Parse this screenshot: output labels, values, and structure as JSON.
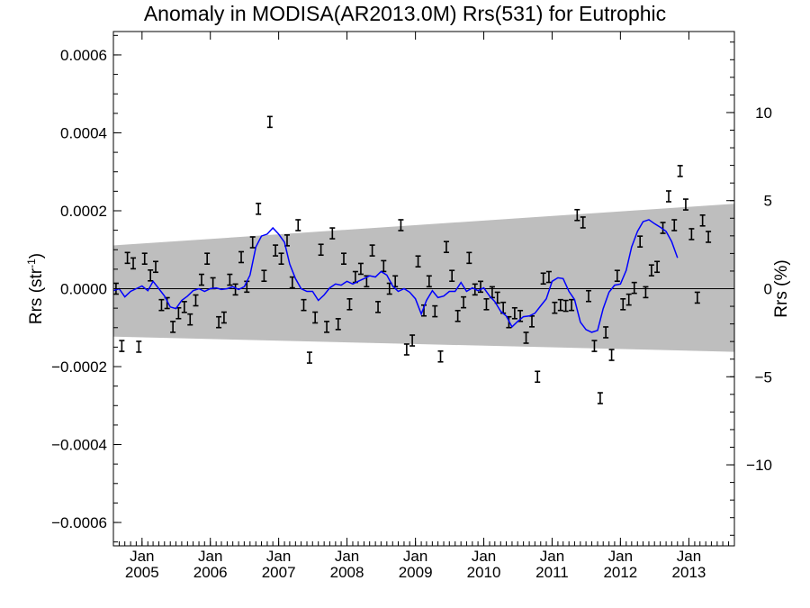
{
  "chart_data": {
    "type": "line",
    "title": "Anomaly in MODISA(AR2013.0M) Rrs(531) for Eutrophic",
    "ylabel": "Rrs (str",
    "ylabel_sup": "-1",
    "ylabel_close": ")",
    "y2label": "Rrs (%)",
    "ylim": [
      -0.00066,
      0.00066
    ],
    "y2lim": [
      -14.6,
      14.6
    ],
    "xlim": [
      "2004-08-01",
      "2013-09-01"
    ],
    "yticks": [
      {
        "value": -0.0006,
        "label": "−0.0006"
      },
      {
        "value": -0.0004,
        "label": "−0.0004"
      },
      {
        "value": -0.0002,
        "label": "−0.0002"
      },
      {
        "value": 0.0,
        "label": "0.0000"
      },
      {
        "value": 0.0002,
        "label": "0.0002"
      },
      {
        "value": 0.0004,
        "label": "0.0004"
      },
      {
        "value": 0.0006,
        "label": "0.0006"
      }
    ],
    "y2ticks": [
      {
        "value": -10,
        "label": "−10"
      },
      {
        "value": -5,
        "label": "−5"
      },
      {
        "value": 0,
        "label": "0"
      },
      {
        "value": 5,
        "label": "5"
      },
      {
        "value": 10,
        "label": "10"
      }
    ],
    "xticks": [
      {
        "date": "2005-01-01",
        "month": "Jan",
        "year": "2005"
      },
      {
        "date": "2006-01-01",
        "month": "Jan",
        "year": "2006"
      },
      {
        "date": "2007-01-01",
        "month": "Jan",
        "year": "2007"
      },
      {
        "date": "2008-01-01",
        "month": "Jan",
        "year": "2008"
      },
      {
        "date": "2009-01-01",
        "month": "Jan",
        "year": "2009"
      },
      {
        "date": "2010-01-01",
        "month": "Jan",
        "year": "2010"
      },
      {
        "date": "2011-01-01",
        "month": "Jan",
        "year": "2011"
      },
      {
        "date": "2012-01-01",
        "month": "Jan",
        "year": "2012"
      },
      {
        "date": "2013-01-01",
        "month": "Jan",
        "year": "2013"
      }
    ],
    "band": {
      "start": {
        "date": "2004-08-01",
        "upper": 0.000111,
        "lower": -0.000123
      },
      "end": {
        "date": "2013-09-01",
        "upper": 0.000218,
        "lower": -0.000162
      }
    },
    "zero_line": 0,
    "colors": {
      "band": "#bebebe",
      "smooth": "#0000ff",
      "points": "#000000",
      "zero": "#000000"
    },
    "series": [
      {
        "kind": "monthly_anomaly_errorbars",
        "points": [
          {
            "date": "2004-08-15",
            "y": 0.0
          },
          {
            "date": "2004-09-15",
            "y": -0.000147
          },
          {
            "date": "2004-10-15",
            "y": 7.9e-05
          },
          {
            "date": "2004-11-15",
            "y": 6.5e-05
          },
          {
            "date": "2004-12-15",
            "y": -0.000149
          },
          {
            "date": "2005-01-15",
            "y": 7.7e-05
          },
          {
            "date": "2005-02-15",
            "y": 3.4e-05
          },
          {
            "date": "2005-03-15",
            "y": 5.6e-05
          },
          {
            "date": "2005-04-15",
            "y": -4.2e-05
          },
          {
            "date": "2005-05-15",
            "y": -3.7e-05
          },
          {
            "date": "2005-06-15",
            "y": -9.8e-05
          },
          {
            "date": "2005-07-15",
            "y": -6.3e-05
          },
          {
            "date": "2005-08-15",
            "y": -4.7e-05
          },
          {
            "date": "2005-09-15",
            "y": -7.9e-05
          },
          {
            "date": "2005-10-15",
            "y": -3e-05
          },
          {
            "date": "2005-11-15",
            "y": 2.3e-05
          },
          {
            "date": "2005-12-15",
            "y": 7.7e-05
          },
          {
            "date": "2006-01-15",
            "y": 1.4e-05
          },
          {
            "date": "2006-02-15",
            "y": -8.6e-05
          },
          {
            "date": "2006-03-15",
            "y": -7.4e-05
          },
          {
            "date": "2006-04-15",
            "y": 2.3e-05
          },
          {
            "date": "2006-05-15",
            "y": -2e-06
          },
          {
            "date": "2006-06-15",
            "y": 8.1e-05
          },
          {
            "date": "2006-07-15",
            "y": 5e-06
          },
          {
            "date": "2006-08-15",
            "y": 0.000119
          },
          {
            "date": "2006-09-15",
            "y": 0.000205
          },
          {
            "date": "2006-10-15",
            "y": 3.3e-05
          },
          {
            "date": "2006-11-15",
            "y": 0.000428
          },
          {
            "date": "2006-12-15",
            "y": 9.8e-05
          },
          {
            "date": "2007-01-15",
            "y": 7.7e-05
          },
          {
            "date": "2007-02-15",
            "y": 0.000124
          },
          {
            "date": "2007-03-15",
            "y": 1.6e-05
          },
          {
            "date": "2007-04-15",
            "y": 0.000163
          },
          {
            "date": "2007-05-15",
            "y": -4.2e-05
          },
          {
            "date": "2007-06-15",
            "y": -0.000177
          },
          {
            "date": "2007-07-15",
            "y": -7.4e-05
          },
          {
            "date": "2007-08-15",
            "y": 0.0001
          },
          {
            "date": "2007-09-15",
            "y": -9.8e-05
          },
          {
            "date": "2007-10-15",
            "y": 0.000142
          },
          {
            "date": "2007-11-15",
            "y": -9.1e-05
          },
          {
            "date": "2007-12-15",
            "y": 7.7e-05
          },
          {
            "date": "2008-01-15",
            "y": -4e-05
          },
          {
            "date": "2008-02-15",
            "y": 3e-05
          },
          {
            "date": "2008-03-15",
            "y": 5.1e-05
          },
          {
            "date": "2008-04-15",
            "y": 1.9e-05
          },
          {
            "date": "2008-05-15",
            "y": 9.8e-05
          },
          {
            "date": "2008-06-15",
            "y": -4.7e-05
          },
          {
            "date": "2008-07-15",
            "y": 5.8e-05
          },
          {
            "date": "2008-08-15",
            "y": 0.0
          },
          {
            "date": "2008-09-15",
            "y": 1.9e-05
          },
          {
            "date": "2008-10-15",
            "y": 0.000163
          },
          {
            "date": "2008-11-15",
            "y": -0.000156
          },
          {
            "date": "2008-12-15",
            "y": -0.000133
          },
          {
            "date": "2009-01-15",
            "y": 7e-05
          },
          {
            "date": "2009-02-15",
            "y": -5.6e-05
          },
          {
            "date": "2009-03-15",
            "y": 1.9e-05
          },
          {
            "date": "2009-04-15",
            "y": -5.8e-05
          },
          {
            "date": "2009-05-15",
            "y": -0.000174
          },
          {
            "date": "2009-06-15",
            "y": 0.000107
          },
          {
            "date": "2009-07-15",
            "y": 3.3e-05
          },
          {
            "date": "2009-08-15",
            "y": -7e-05
          },
          {
            "date": "2009-09-15",
            "y": -3.5e-05
          },
          {
            "date": "2009-10-15",
            "y": 7.9e-05
          },
          {
            "date": "2009-11-15",
            "y": -2e-06
          },
          {
            "date": "2009-12-15",
            "y": 5e-06
          },
          {
            "date": "2010-01-15",
            "y": -4e-05
          },
          {
            "date": "2010-02-15",
            "y": -9e-06
          },
          {
            "date": "2010-03-15",
            "y": -2.3e-05
          },
          {
            "date": "2010-04-15",
            "y": -4.9e-05
          },
          {
            "date": "2010-05-15",
            "y": -8.6e-05
          },
          {
            "date": "2010-06-15",
            "y": -6.3e-05
          },
          {
            "date": "2010-07-15",
            "y": -7e-05
          },
          {
            "date": "2010-08-15",
            "y": -0.000126
          },
          {
            "date": "2010-09-15",
            "y": -8.4e-05
          },
          {
            "date": "2010-10-15",
            "y": -0.000226
          },
          {
            "date": "2010-11-15",
            "y": 2.6e-05
          },
          {
            "date": "2010-12-15",
            "y": 3e-05
          },
          {
            "date": "2011-01-15",
            "y": -4.9e-05
          },
          {
            "date": "2011-02-15",
            "y": -4.2e-05
          },
          {
            "date": "2011-03-15",
            "y": -4.4e-05
          },
          {
            "date": "2011-04-15",
            "y": -4.2e-05
          },
          {
            "date": "2011-05-15",
            "y": 0.000189
          },
          {
            "date": "2011-06-15",
            "y": 0.00017
          },
          {
            "date": "2011-07-15",
            "y": -1.9e-05
          },
          {
            "date": "2011-08-15",
            "y": -0.000147
          },
          {
            "date": "2011-09-15",
            "y": -0.000281
          },
          {
            "date": "2011-10-15",
            "y": -0.000112
          },
          {
            "date": "2011-11-15",
            "y": -0.00017
          },
          {
            "date": "2011-12-15",
            "y": 3.3e-05
          },
          {
            "date": "2012-01-15",
            "y": -4e-05
          },
          {
            "date": "2012-02-15",
            "y": -2.8e-05
          },
          {
            "date": "2012-03-15",
            "y": 2e-06
          },
          {
            "date": "2012-04-15",
            "y": 0.000121
          },
          {
            "date": "2012-05-15",
            "y": -9e-06
          },
          {
            "date": "2012-06-15",
            "y": 4.7e-05
          },
          {
            "date": "2012-07-15",
            "y": 5.6e-05
          },
          {
            "date": "2012-08-15",
            "y": 0.000156
          },
          {
            "date": "2012-09-15",
            "y": 0.000237
          },
          {
            "date": "2012-10-15",
            "y": 0.000163
          },
          {
            "date": "2012-11-15",
            "y": 0.000302
          },
          {
            "date": "2012-12-15",
            "y": 0.000216
          },
          {
            "date": "2013-01-15",
            "y": 0.00014
          },
          {
            "date": "2013-02-15",
            "y": -2.3e-05
          },
          {
            "date": "2013-03-15",
            "y": 0.000175
          },
          {
            "date": "2013-04-15",
            "y": 0.000133
          }
        ]
      },
      {
        "kind": "smoothed_anomaly",
        "points": [
          {
            "date": "2004-08-01",
            "y": -5e-06
          },
          {
            "date": "2004-09-01",
            "y": 0.0
          },
          {
            "date": "2004-10-01",
            "y": -2.1e-05
          },
          {
            "date": "2004-11-01",
            "y": -7e-06
          },
          {
            "date": "2004-12-01",
            "y": 0.0
          },
          {
            "date": "2005-01-01",
            "y": 7e-06
          },
          {
            "date": "2005-02-01",
            "y": -5e-06
          },
          {
            "date": "2005-03-01",
            "y": 1.9e-05
          },
          {
            "date": "2005-04-01",
            "y": 0.0
          },
          {
            "date": "2005-05-01",
            "y": -1.9e-05
          },
          {
            "date": "2005-06-01",
            "y": -4.7e-05
          },
          {
            "date": "2005-07-01",
            "y": -5.1e-05
          },
          {
            "date": "2005-08-01",
            "y": -3e-05
          },
          {
            "date": "2005-09-01",
            "y": -1.9e-05
          },
          {
            "date": "2005-10-01",
            "y": -5e-06
          },
          {
            "date": "2005-11-01",
            "y": 0.0
          },
          {
            "date": "2005-12-01",
            "y": -7e-06
          },
          {
            "date": "2006-01-01",
            "y": 0.0
          },
          {
            "date": "2006-02-01",
            "y": 2e-06
          },
          {
            "date": "2006-03-01",
            "y": -2e-06
          },
          {
            "date": "2006-04-01",
            "y": 0.0
          },
          {
            "date": "2006-05-01",
            "y": 5e-06
          },
          {
            "date": "2006-06-01",
            "y": -2e-06
          },
          {
            "date": "2006-07-01",
            "y": 5e-06
          },
          {
            "date": "2006-08-01",
            "y": 3.5e-05
          },
          {
            "date": "2006-09-01",
            "y": 0.000107
          },
          {
            "date": "2006-10-01",
            "y": 0.000135
          },
          {
            "date": "2006-11-01",
            "y": 0.00014
          },
          {
            "date": "2006-12-01",
            "y": 0.000156
          },
          {
            "date": "2007-01-01",
            "y": 0.00014
          },
          {
            "date": "2007-02-01",
            "y": 0.000119
          },
          {
            "date": "2007-03-01",
            "y": 6.3e-05
          },
          {
            "date": "2007-04-01",
            "y": 2.6e-05
          },
          {
            "date": "2007-05-01",
            "y": 0.0
          },
          {
            "date": "2007-06-01",
            "y": -7e-06
          },
          {
            "date": "2007-07-01",
            "y": -7e-06
          },
          {
            "date": "2007-08-01",
            "y": -3e-05
          },
          {
            "date": "2007-09-01",
            "y": -1.6e-05
          },
          {
            "date": "2007-10-01",
            "y": 2e-06
          },
          {
            "date": "2007-11-01",
            "y": 1.2e-05
          },
          {
            "date": "2007-12-01",
            "y": 9e-06
          },
          {
            "date": "2008-01-01",
            "y": 1.9e-05
          },
          {
            "date": "2008-02-01",
            "y": 1.2e-05
          },
          {
            "date": "2008-03-01",
            "y": 1.9e-05
          },
          {
            "date": "2008-04-01",
            "y": 2.6e-05
          },
          {
            "date": "2008-05-01",
            "y": 3.3e-05
          },
          {
            "date": "2008-06-01",
            "y": 3e-05
          },
          {
            "date": "2008-07-01",
            "y": 4.4e-05
          },
          {
            "date": "2008-08-01",
            "y": 3.5e-05
          },
          {
            "date": "2008-09-01",
            "y": 7e-06
          },
          {
            "date": "2008-10-01",
            "y": -7e-06
          },
          {
            "date": "2008-11-01",
            "y": 0.0
          },
          {
            "date": "2008-12-01",
            "y": -9e-06
          },
          {
            "date": "2009-01-01",
            "y": -2.6e-05
          },
          {
            "date": "2009-02-01",
            "y": -6.5e-05
          },
          {
            "date": "2009-03-01",
            "y": -3e-05
          },
          {
            "date": "2009-04-01",
            "y": -5e-06
          },
          {
            "date": "2009-05-01",
            "y": -2.3e-05
          },
          {
            "date": "2009-06-01",
            "y": -1.9e-05
          },
          {
            "date": "2009-07-01",
            "y": -7e-06
          },
          {
            "date": "2009-08-01",
            "y": -7e-06
          },
          {
            "date": "2009-09-01",
            "y": 1.6e-05
          },
          {
            "date": "2009-10-01",
            "y": -7e-06
          },
          {
            "date": "2009-11-01",
            "y": 2e-06
          },
          {
            "date": "2009-12-01",
            "y": -5e-06
          },
          {
            "date": "2010-01-01",
            "y": 2e-06
          },
          {
            "date": "2010-02-01",
            "y": -1.9e-05
          },
          {
            "date": "2010-03-01",
            "y": -3.3e-05
          },
          {
            "date": "2010-04-01",
            "y": -5.8e-05
          },
          {
            "date": "2010-05-01",
            "y": -7e-05
          },
          {
            "date": "2010-06-01",
            "y": -9.8e-05
          },
          {
            "date": "2010-07-01",
            "y": -8.4e-05
          },
          {
            "date": "2010-08-01",
            "y": -7.2e-05
          },
          {
            "date": "2010-09-01",
            "y": -7e-05
          },
          {
            "date": "2010-10-01",
            "y": -6.3e-05
          },
          {
            "date": "2010-11-01",
            "y": -4.4e-05
          },
          {
            "date": "2010-12-01",
            "y": -2.6e-05
          },
          {
            "date": "2011-01-01",
            "y": 1.9e-05
          },
          {
            "date": "2011-02-01",
            "y": 2.8e-05
          },
          {
            "date": "2011-03-01",
            "y": 2.6e-05
          },
          {
            "date": "2011-04-01",
            "y": -7e-06
          },
          {
            "date": "2011-05-01",
            "y": -2.8e-05
          },
          {
            "date": "2011-06-01",
            "y": -8.6e-05
          },
          {
            "date": "2011-07-01",
            "y": -0.000105
          },
          {
            "date": "2011-08-01",
            "y": -0.000112
          },
          {
            "date": "2011-09-01",
            "y": -0.000107
          },
          {
            "date": "2011-10-01",
            "y": -5.1e-05
          },
          {
            "date": "2011-11-01",
            "y": -9e-06
          },
          {
            "date": "2011-12-01",
            "y": 9e-06
          },
          {
            "date": "2012-01-01",
            "y": 1.2e-05
          },
          {
            "date": "2012-02-01",
            "y": 4.7e-05
          },
          {
            "date": "2012-03-01",
            "y": 0.000107
          },
          {
            "date": "2012-04-01",
            "y": 0.000147
          },
          {
            "date": "2012-05-01",
            "y": 0.000172
          },
          {
            "date": "2012-06-01",
            "y": 0.000177
          },
          {
            "date": "2012-07-01",
            "y": 0.000167
          },
          {
            "date": "2012-08-01",
            "y": 0.000158
          },
          {
            "date": "2012-09-01",
            "y": 0.000147
          },
          {
            "date": "2012-10-01",
            "y": 0.000121
          },
          {
            "date": "2012-11-01",
            "y": 7.9e-05
          }
        ]
      }
    ]
  }
}
